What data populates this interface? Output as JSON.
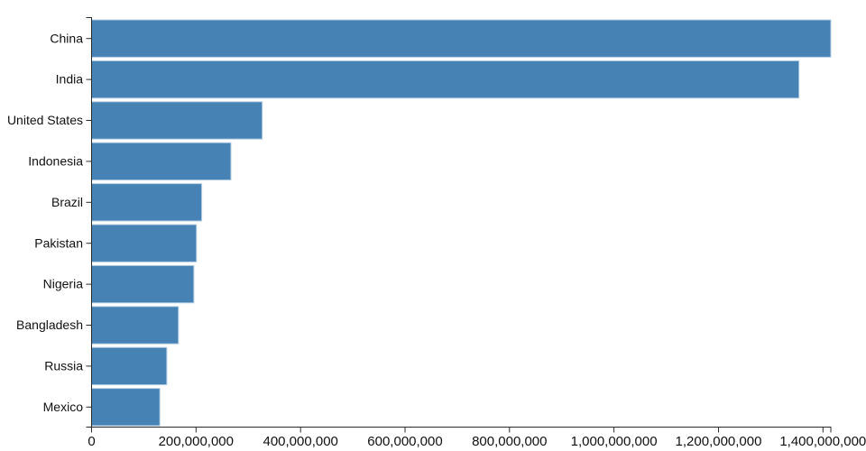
{
  "chart_data": {
    "type": "bar",
    "orientation": "horizontal",
    "title": "",
    "xlabel": "",
    "ylabel": "",
    "categories": [
      "China",
      "India",
      "United States",
      "Indonesia",
      "Brazil",
      "Pakistan",
      "Nigeria",
      "Bangladesh",
      "Russia",
      "Mexico"
    ],
    "values": [
      1415045928,
      1354051854,
      326766748,
      266794980,
      210867954,
      200813818,
      195875237,
      166368149,
      143964709,
      130759074
    ],
    "xlim": [
      0,
      1415045928
    ],
    "x_ticks": [
      0,
      200000000,
      400000000,
      600000000,
      800000000,
      1000000000,
      1200000000,
      1400000000
    ],
    "x_tick_labels": [
      "0",
      "200,000,000",
      "400,000,000",
      "600,000,000",
      "800,000,000",
      "1,000,000,000",
      "1,200,000,000",
      "1,400,000,000"
    ],
    "grid": false,
    "legend": null,
    "colors": {
      "bar_fill": "#4682b4",
      "bar_stroke": "#b7d0e4",
      "axis_line": "#2b2b2b",
      "tick_text": "#111111",
      "background": "#ffffff"
    }
  }
}
